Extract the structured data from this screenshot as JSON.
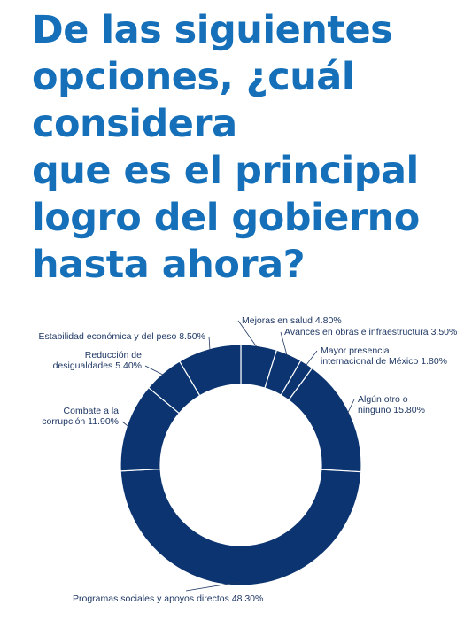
{
  "title_lines": [
    "De las siguientes",
    "opciones, ¿cuál",
    "considera",
    "que es el principal",
    "logro del gobierno",
    "hasta ahora?"
  ],
  "colors": {
    "title": "#1570b9",
    "slice": "#0b3470",
    "separator": "#ffffff",
    "label": "#1f3864",
    "leader": "#1f3864"
  },
  "chart_data": {
    "type": "pie",
    "donut": true,
    "start_angle_deg": 0,
    "direction": "clockwise",
    "slices": [
      {
        "label_lines": [
          "Mejoras en salud 4.80%"
        ],
        "value": 4.8
      },
      {
        "label_lines": [
          "Avances en obras e infraestructura 3.50%"
        ],
        "value": 3.5
      },
      {
        "label_lines": [
          "Mayor presencia",
          "internacional de México 1.80%"
        ],
        "value": 1.8
      },
      {
        "label_lines": [
          "Algún otro o",
          "ninguno 15.80%"
        ],
        "value": 15.8
      },
      {
        "label_lines": [
          "Programas sociales y apoyos directos 48.30%"
        ],
        "value": 48.3
      },
      {
        "label_lines": [
          "Combate a la",
          "corrupción 11.90%"
        ],
        "value": 11.9
      },
      {
        "label_lines": [
          "Reducción de",
          "desigualdades 5.40%"
        ],
        "value": 5.4
      },
      {
        "label_lines": [
          "Estabilidad económica y del peso 8.50%"
        ],
        "value": 8.5
      }
    ]
  }
}
